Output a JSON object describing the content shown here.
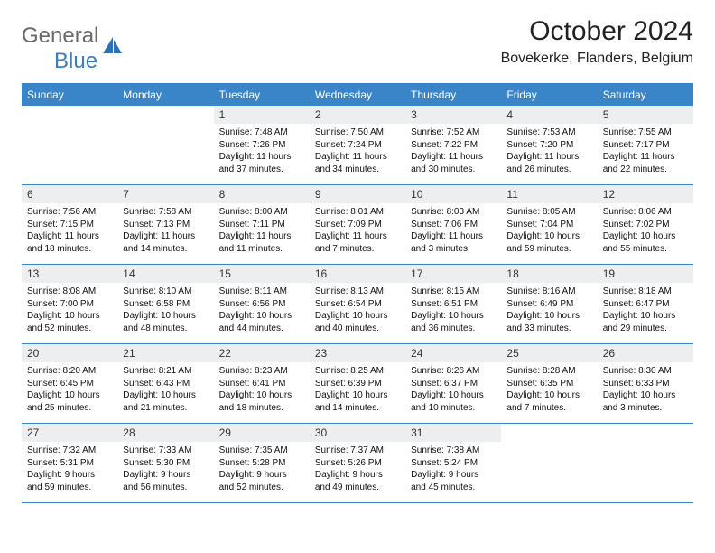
{
  "brand": {
    "text1": "General",
    "text2": "Blue"
  },
  "title": "October 2024",
  "location": "Bovekerke, Flanders, Belgium",
  "dayHeaders": [
    "Sunday",
    "Monday",
    "Tuesday",
    "Wednesday",
    "Thursday",
    "Friday",
    "Saturday"
  ],
  "colors": {
    "header_bg": "#3a85c8",
    "header_text": "#ffffff",
    "daynum_bg": "#eceeef",
    "border": "#3a85c8",
    "logo_gray": "#6a6a6a",
    "logo_blue": "#3a7fc4"
  },
  "weeks": [
    [
      {
        "n": "",
        "sr": "",
        "ss": "",
        "dl": ""
      },
      {
        "n": "",
        "sr": "",
        "ss": "",
        "dl": ""
      },
      {
        "n": "1",
        "sr": "Sunrise: 7:48 AM",
        "ss": "Sunset: 7:26 PM",
        "dl": "Daylight: 11 hours and 37 minutes."
      },
      {
        "n": "2",
        "sr": "Sunrise: 7:50 AM",
        "ss": "Sunset: 7:24 PM",
        "dl": "Daylight: 11 hours and 34 minutes."
      },
      {
        "n": "3",
        "sr": "Sunrise: 7:52 AM",
        "ss": "Sunset: 7:22 PM",
        "dl": "Daylight: 11 hours and 30 minutes."
      },
      {
        "n": "4",
        "sr": "Sunrise: 7:53 AM",
        "ss": "Sunset: 7:20 PM",
        "dl": "Daylight: 11 hours and 26 minutes."
      },
      {
        "n": "5",
        "sr": "Sunrise: 7:55 AM",
        "ss": "Sunset: 7:17 PM",
        "dl": "Daylight: 11 hours and 22 minutes."
      }
    ],
    [
      {
        "n": "6",
        "sr": "Sunrise: 7:56 AM",
        "ss": "Sunset: 7:15 PM",
        "dl": "Daylight: 11 hours and 18 minutes."
      },
      {
        "n": "7",
        "sr": "Sunrise: 7:58 AM",
        "ss": "Sunset: 7:13 PM",
        "dl": "Daylight: 11 hours and 14 minutes."
      },
      {
        "n": "8",
        "sr": "Sunrise: 8:00 AM",
        "ss": "Sunset: 7:11 PM",
        "dl": "Daylight: 11 hours and 11 minutes."
      },
      {
        "n": "9",
        "sr": "Sunrise: 8:01 AM",
        "ss": "Sunset: 7:09 PM",
        "dl": "Daylight: 11 hours and 7 minutes."
      },
      {
        "n": "10",
        "sr": "Sunrise: 8:03 AM",
        "ss": "Sunset: 7:06 PM",
        "dl": "Daylight: 11 hours and 3 minutes."
      },
      {
        "n": "11",
        "sr": "Sunrise: 8:05 AM",
        "ss": "Sunset: 7:04 PM",
        "dl": "Daylight: 10 hours and 59 minutes."
      },
      {
        "n": "12",
        "sr": "Sunrise: 8:06 AM",
        "ss": "Sunset: 7:02 PM",
        "dl": "Daylight: 10 hours and 55 minutes."
      }
    ],
    [
      {
        "n": "13",
        "sr": "Sunrise: 8:08 AM",
        "ss": "Sunset: 7:00 PM",
        "dl": "Daylight: 10 hours and 52 minutes."
      },
      {
        "n": "14",
        "sr": "Sunrise: 8:10 AM",
        "ss": "Sunset: 6:58 PM",
        "dl": "Daylight: 10 hours and 48 minutes."
      },
      {
        "n": "15",
        "sr": "Sunrise: 8:11 AM",
        "ss": "Sunset: 6:56 PM",
        "dl": "Daylight: 10 hours and 44 minutes."
      },
      {
        "n": "16",
        "sr": "Sunrise: 8:13 AM",
        "ss": "Sunset: 6:54 PM",
        "dl": "Daylight: 10 hours and 40 minutes."
      },
      {
        "n": "17",
        "sr": "Sunrise: 8:15 AM",
        "ss": "Sunset: 6:51 PM",
        "dl": "Daylight: 10 hours and 36 minutes."
      },
      {
        "n": "18",
        "sr": "Sunrise: 8:16 AM",
        "ss": "Sunset: 6:49 PM",
        "dl": "Daylight: 10 hours and 33 minutes."
      },
      {
        "n": "19",
        "sr": "Sunrise: 8:18 AM",
        "ss": "Sunset: 6:47 PM",
        "dl": "Daylight: 10 hours and 29 minutes."
      }
    ],
    [
      {
        "n": "20",
        "sr": "Sunrise: 8:20 AM",
        "ss": "Sunset: 6:45 PM",
        "dl": "Daylight: 10 hours and 25 minutes."
      },
      {
        "n": "21",
        "sr": "Sunrise: 8:21 AM",
        "ss": "Sunset: 6:43 PM",
        "dl": "Daylight: 10 hours and 21 minutes."
      },
      {
        "n": "22",
        "sr": "Sunrise: 8:23 AM",
        "ss": "Sunset: 6:41 PM",
        "dl": "Daylight: 10 hours and 18 minutes."
      },
      {
        "n": "23",
        "sr": "Sunrise: 8:25 AM",
        "ss": "Sunset: 6:39 PM",
        "dl": "Daylight: 10 hours and 14 minutes."
      },
      {
        "n": "24",
        "sr": "Sunrise: 8:26 AM",
        "ss": "Sunset: 6:37 PM",
        "dl": "Daylight: 10 hours and 10 minutes."
      },
      {
        "n": "25",
        "sr": "Sunrise: 8:28 AM",
        "ss": "Sunset: 6:35 PM",
        "dl": "Daylight: 10 hours and 7 minutes."
      },
      {
        "n": "26",
        "sr": "Sunrise: 8:30 AM",
        "ss": "Sunset: 6:33 PM",
        "dl": "Daylight: 10 hours and 3 minutes."
      }
    ],
    [
      {
        "n": "27",
        "sr": "Sunrise: 7:32 AM",
        "ss": "Sunset: 5:31 PM",
        "dl": "Daylight: 9 hours and 59 minutes."
      },
      {
        "n": "28",
        "sr": "Sunrise: 7:33 AM",
        "ss": "Sunset: 5:30 PM",
        "dl": "Daylight: 9 hours and 56 minutes."
      },
      {
        "n": "29",
        "sr": "Sunrise: 7:35 AM",
        "ss": "Sunset: 5:28 PM",
        "dl": "Daylight: 9 hours and 52 minutes."
      },
      {
        "n": "30",
        "sr": "Sunrise: 7:37 AM",
        "ss": "Sunset: 5:26 PM",
        "dl": "Daylight: 9 hours and 49 minutes."
      },
      {
        "n": "31",
        "sr": "Sunrise: 7:38 AM",
        "ss": "Sunset: 5:24 PM",
        "dl": "Daylight: 9 hours and 45 minutes."
      },
      {
        "n": "",
        "sr": "",
        "ss": "",
        "dl": ""
      },
      {
        "n": "",
        "sr": "",
        "ss": "",
        "dl": ""
      }
    ]
  ]
}
